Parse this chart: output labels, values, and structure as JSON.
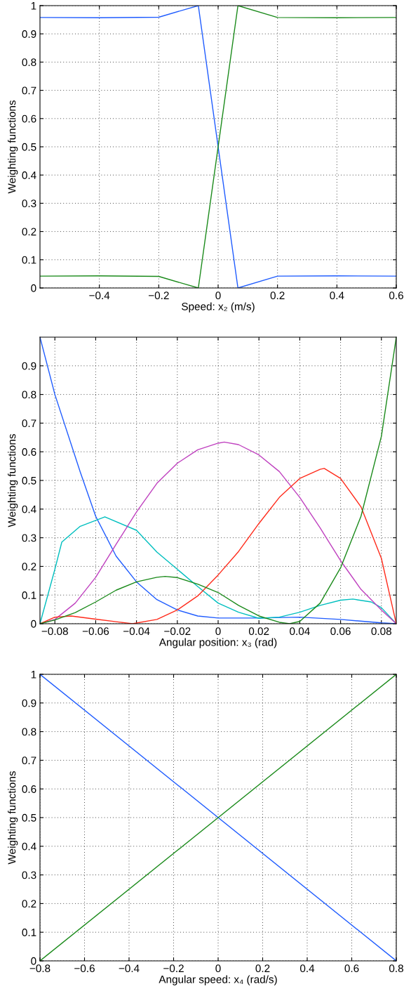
{
  "chart_data": [
    {
      "type": "line",
      "xlabel": "Speed: x₂ (m/s)",
      "ylabel": "Weighting functions",
      "xlim": [
        -0.6,
        0.6
      ],
      "ylim": [
        0,
        1
      ],
      "xticks": [
        -0.4,
        -0.2,
        0,
        0.2,
        0.4,
        0.6
      ],
      "yticks": [
        0,
        0.1,
        0.2,
        0.3,
        0.4,
        0.5,
        0.6,
        0.7,
        0.8,
        0.9,
        1
      ],
      "grid": true,
      "line_style": "solid",
      "series": [
        {
          "color": "#1f5cff",
          "x": [
            -0.6,
            -0.4,
            -0.2,
            -0.0667,
            0.0667,
            0.2,
            0.4,
            0.6
          ],
          "values": [
            0.958,
            0.957,
            0.959,
            1,
            0,
            0.042,
            0.043,
            0.042
          ]
        },
        {
          "color": "#1a8a1a",
          "x": [
            -0.6,
            -0.4,
            -0.2,
            -0.0667,
            0.0667,
            0.2,
            0.4,
            0.6
          ],
          "values": [
            0.042,
            0.043,
            0.041,
            0,
            1,
            0.958,
            0.957,
            0.958
          ]
        }
      ]
    },
    {
      "type": "line",
      "xlabel": "Angular position: x₃ (rad)",
      "ylabel": "Weighting functions",
      "xlim": [
        -0.0873,
        0.0873
      ],
      "ylim": [
        0,
        1
      ],
      "xticks": [
        -0.08,
        -0.06,
        -0.04,
        -0.02,
        0,
        0.02,
        0.04,
        0.06,
        0.08
      ],
      "yticks": [
        0,
        0.1,
        0.2,
        0.3,
        0.4,
        0.5,
        0.6,
        0.7,
        0.8,
        0.9
      ],
      "grid": true,
      "line_style": "solid",
      "series": [
        {
          "color": "#1f5cff",
          "x": [
            -0.0873,
            -0.08,
            -0.0676,
            -0.06,
            -0.05,
            -0.04,
            -0.03,
            -0.02,
            -0.01,
            0,
            0.02,
            0.04,
            0.06,
            0.08,
            0.0873
          ],
          "values": [
            1,
            0.8,
            0.53,
            0.375,
            0.236,
            0.146,
            0.084,
            0.048,
            0.027,
            0.02,
            0.02,
            0.023,
            0.015,
            0.003,
            0
          ]
        },
        {
          "color": "#00bfbf",
          "x": [
            -0.0873,
            -0.08,
            -0.0766,
            -0.0676,
            -0.0555,
            -0.04,
            -0.03,
            -0.02,
            -0.01,
            0,
            0.01,
            0.02,
            0.03,
            0.04,
            0.05,
            0.06,
            0.066,
            0.075,
            0.08,
            0.0873
          ],
          "values": [
            0,
            0.19,
            0.285,
            0.34,
            0.373,
            0.326,
            0.25,
            0.19,
            0.13,
            0.072,
            0.04,
            0.019,
            0.023,
            0.04,
            0.064,
            0.082,
            0.086,
            0.076,
            0.056,
            0
          ]
        },
        {
          "color": "#bf40bf",
          "x": [
            -0.0873,
            -0.08,
            -0.07,
            -0.06,
            -0.05,
            -0.04,
            -0.03,
            -0.02,
            -0.01,
            0,
            0.003,
            0.01,
            0.02,
            0.03,
            0.04,
            0.05,
            0.06,
            0.07,
            0.08,
            0.0873
          ],
          "values": [
            0,
            0.015,
            0.072,
            0.162,
            0.277,
            0.39,
            0.49,
            0.56,
            0.607,
            0.63,
            0.634,
            0.625,
            0.589,
            0.531,
            0.441,
            0.334,
            0.22,
            0.12,
            0.048,
            0
          ]
        },
        {
          "color": "#ff2a1a",
          "x": [
            -0.0873,
            -0.08,
            -0.072,
            -0.06,
            -0.05,
            -0.042,
            -0.03,
            -0.02,
            -0.01,
            0,
            0.01,
            0.02,
            0.03,
            0.04,
            0.05,
            0.052,
            0.06,
            0.07,
            0.08,
            0.0873
          ],
          "values": [
            0,
            0.023,
            0.027,
            0.016,
            0.007,
            0,
            0.015,
            0.048,
            0.097,
            0.17,
            0.252,
            0.35,
            0.441,
            0.507,
            0.539,
            0.542,
            0.507,
            0.408,
            0.228,
            0
          ]
        },
        {
          "color": "#1a8a1a",
          "x": [
            -0.0873,
            -0.08,
            -0.07,
            -0.06,
            -0.05,
            -0.04,
            -0.03,
            -0.026,
            -0.02,
            -0.01,
            0,
            0.01,
            0.02,
            0.03,
            0.035,
            0.04,
            0.05,
            0.06,
            0.07,
            0.08,
            0.0873
          ],
          "values": [
            0,
            0.013,
            0.039,
            0.076,
            0.117,
            0.146,
            0.162,
            0.165,
            0.161,
            0.138,
            0.109,
            0.064,
            0.027,
            0.005,
            0,
            0.008,
            0.072,
            0.195,
            0.375,
            0.654,
            1
          ]
        }
      ]
    },
    {
      "type": "line",
      "xlabel": "Angular speed: x₄ (rad/s)",
      "ylabel": "Weighting functions",
      "xlim": [
        -0.8,
        0.8
      ],
      "ylim": [
        0,
        1
      ],
      "xticks": [
        -0.8,
        -0.6,
        -0.4,
        -0.2,
        0,
        0.2,
        0.4,
        0.6,
        0.8
      ],
      "yticks": [
        0,
        0.1,
        0.2,
        0.3,
        0.4,
        0.5,
        0.6,
        0.7,
        0.8,
        0.9,
        1
      ],
      "grid": true,
      "line_style": "solid",
      "series": [
        {
          "color": "#1f5cff",
          "x": [
            -0.8,
            0.8
          ],
          "values": [
            1,
            0
          ]
        },
        {
          "color": "#1a8a1a",
          "x": [
            -0.8,
            0.8
          ],
          "values": [
            0,
            1
          ]
        }
      ]
    }
  ]
}
